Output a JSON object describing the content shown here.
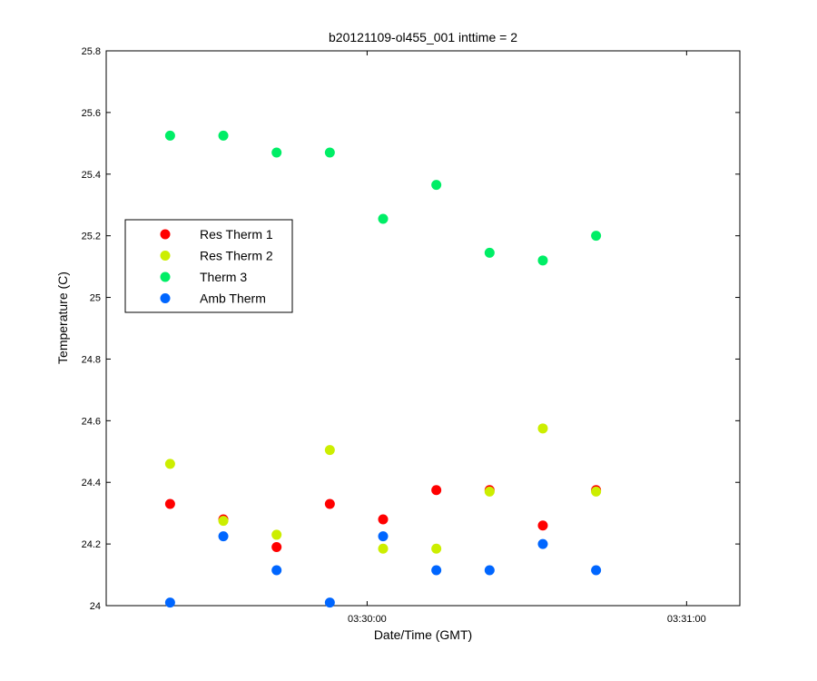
{
  "chart_data": {
    "type": "scatter",
    "title": "b20121109-ol455_001 inttime = 2",
    "xlabel": "Date/Time (GMT)",
    "ylabel": "Temperature (C)",
    "x_unit": "seconds",
    "xlim": [
      -49,
      70
    ],
    "ylim": [
      24,
      25.8
    ],
    "x_ticks": [
      {
        "value": 0,
        "label": "03:30:00"
      },
      {
        "value": 60,
        "label": "03:31:00"
      }
    ],
    "y_ticks": [
      24,
      24.2,
      24.4,
      24.6,
      24.8,
      25,
      25.2,
      25.4,
      25.6,
      25.8
    ],
    "grid": false,
    "legend_position": "middle-left",
    "series": [
      {
        "name": "Res Therm 1",
        "color": "#ff0000",
        "points": [
          [
            -37,
            24.33
          ],
          [
            -27,
            24.28
          ],
          [
            -17,
            24.19
          ],
          [
            -7,
            24.33
          ],
          [
            3,
            24.28
          ],
          [
            13,
            24.375
          ],
          [
            23,
            24.375
          ],
          [
            33,
            24.26
          ],
          [
            43,
            24.375
          ]
        ]
      },
      {
        "name": "Res Therm 2",
        "color": "#ccee00",
        "points": [
          [
            -37,
            24.46
          ],
          [
            -27,
            24.275
          ],
          [
            -17,
            24.23
          ],
          [
            -7,
            24.505
          ],
          [
            3,
            24.185
          ],
          [
            13,
            24.185
          ],
          [
            23,
            24.37
          ],
          [
            33,
            24.575
          ],
          [
            43,
            24.37
          ]
        ]
      },
      {
        "name": "Therm 3",
        "color": "#00ee66",
        "points": [
          [
            -37,
            25.525
          ],
          [
            -27,
            25.525
          ],
          [
            -17,
            25.47
          ],
          [
            -7,
            25.47
          ],
          [
            3,
            25.255
          ],
          [
            13,
            25.365
          ],
          [
            23,
            25.145
          ],
          [
            33,
            25.12
          ],
          [
            43,
            25.2
          ]
        ]
      },
      {
        "name": "Amb Therm",
        "color": "#0066ff",
        "points": [
          [
            -37,
            24.01
          ],
          [
            -27,
            24.225
          ],
          [
            -17,
            24.115
          ],
          [
            -7,
            24.01
          ],
          [
            3,
            24.225
          ],
          [
            13,
            24.115
          ],
          [
            23,
            24.115
          ],
          [
            33,
            24.2
          ],
          [
            43,
            24.115
          ]
        ]
      }
    ]
  }
}
